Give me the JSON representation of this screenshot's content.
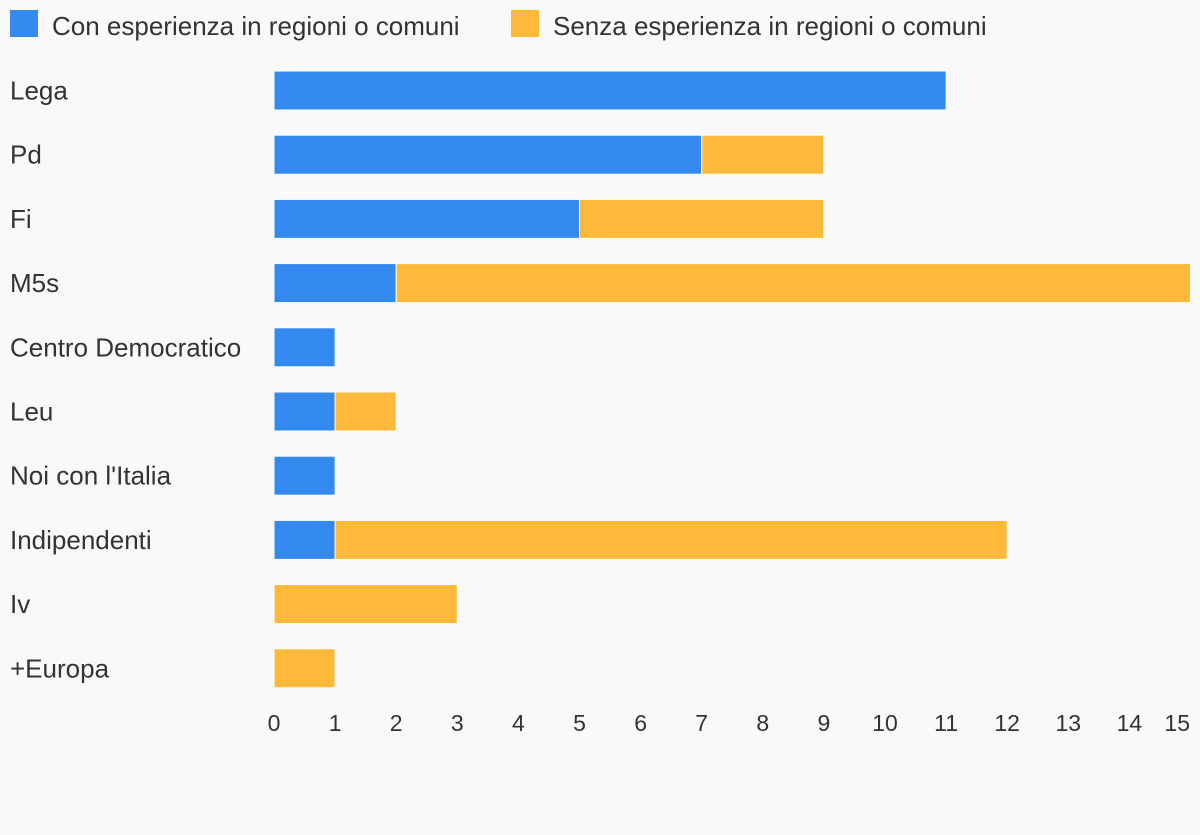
{
  "chart_data": {
    "type": "bar",
    "orientation": "horizontal",
    "stacked": true,
    "categories": [
      "Lega",
      "Pd",
      "Fi",
      "M5s",
      "Centro Democratico",
      "Leu",
      "Noi con l'Italia",
      "Indipendenti",
      "Iv",
      "+Europa"
    ],
    "series": [
      {
        "name": "Con esperienza in regioni o comuni",
        "color": "#3389ee",
        "values": [
          11,
          7,
          5,
          2,
          1,
          1,
          1,
          1,
          0,
          0
        ]
      },
      {
        "name": "Senza esperienza in regioni o comuni",
        "color": "#fdb939",
        "values": [
          0,
          2,
          4,
          13,
          0,
          1,
          0,
          11,
          3,
          1
        ]
      }
    ],
    "x_ticks": [
      "0",
      "1",
      "2",
      "3",
      "4",
      "5",
      "6",
      "7",
      "8",
      "9",
      "10",
      "11",
      "12",
      "13",
      "14",
      "15"
    ],
    "xlim": [
      0,
      15
    ],
    "grid": false,
    "legend_position": "top-left",
    "title": "",
    "xlabel": "",
    "ylabel": ""
  }
}
